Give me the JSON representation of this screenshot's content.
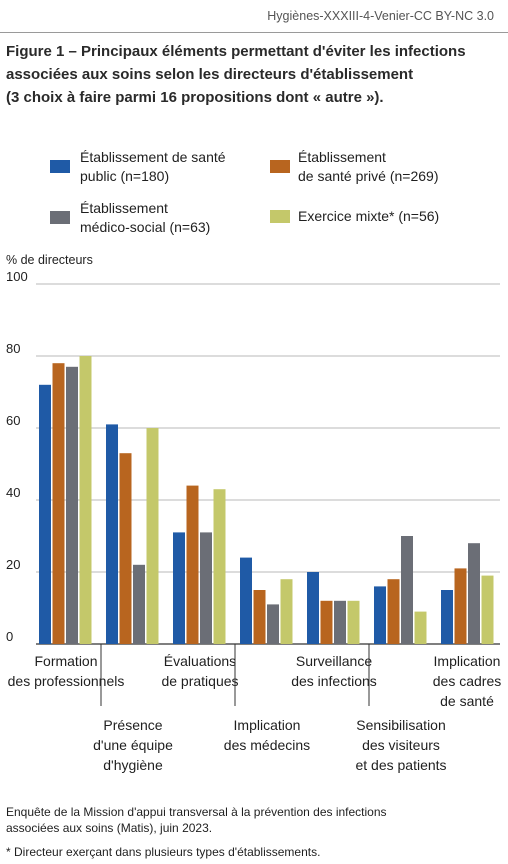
{
  "header": {
    "text": "Hygiènes-XXXIII-4-Venier-CC BY-NC 3.0"
  },
  "title_lines": [
    "Figure 1 – Principaux éléments permettant d'éviter les infections",
    "associées aux soins selon les directeurs d'établissement",
    "(3 choix à faire parmi 16 propositions dont « autre »)."
  ],
  "footer_lines": [
    "Enquête de la Mission d'appui transversal à la prévention des infections",
    "associées aux soins (Matis), juin 2023."
  ],
  "footnote": "* Directeur exerçant dans plusieurs types d'établissements.",
  "colors": {
    "public": "#1f5aa6",
    "prive": "#b8651f",
    "medico": "#6b6e76",
    "mixte": "#c4c86a",
    "grid": "#b8b8b8",
    "axis": "#333333"
  },
  "chart_data": {
    "type": "bar",
    "ylabel": "% de directeurs",
    "ylim": [
      0,
      100
    ],
    "yticks": [
      0,
      20,
      40,
      60,
      80,
      100
    ],
    "grid": true,
    "legend_position": "top",
    "categories": [
      [
        "Formation",
        "des professionnels"
      ],
      [
        "Présence",
        "d'une équipe",
        "d'hygiène"
      ],
      [
        "Évaluations",
        "de pratiques"
      ],
      [
        "Implication",
        "des médecins"
      ],
      [
        "Surveillance",
        "des infections"
      ],
      [
        "Sensibilisation",
        "des visiteurs",
        "et des patients"
      ],
      [
        "Implication",
        "des cadres",
        "de santé"
      ]
    ],
    "series": [
      {
        "name": [
          "Établissement de santé",
          "public (n=180)"
        ],
        "color": "#1f5aa6",
        "values": [
          72,
          61,
          31,
          24,
          20,
          16,
          15
        ]
      },
      {
        "name": [
          "Établissement",
          "de santé privé (n=269)"
        ],
        "color": "#b8651f",
        "values": [
          78,
          53,
          44,
          15,
          12,
          18,
          21
        ]
      },
      {
        "name": [
          "Établissement",
          "médico-social (n=63)"
        ],
        "color": "#6b6e76",
        "values": [
          77,
          22,
          31,
          11,
          12,
          30,
          28
        ]
      },
      {
        "name": [
          "Exercice mixte* (n=56)"
        ],
        "color": "#c4c86a",
        "values": [
          80,
          60,
          43,
          18,
          12,
          9,
          19
        ]
      }
    ]
  }
}
